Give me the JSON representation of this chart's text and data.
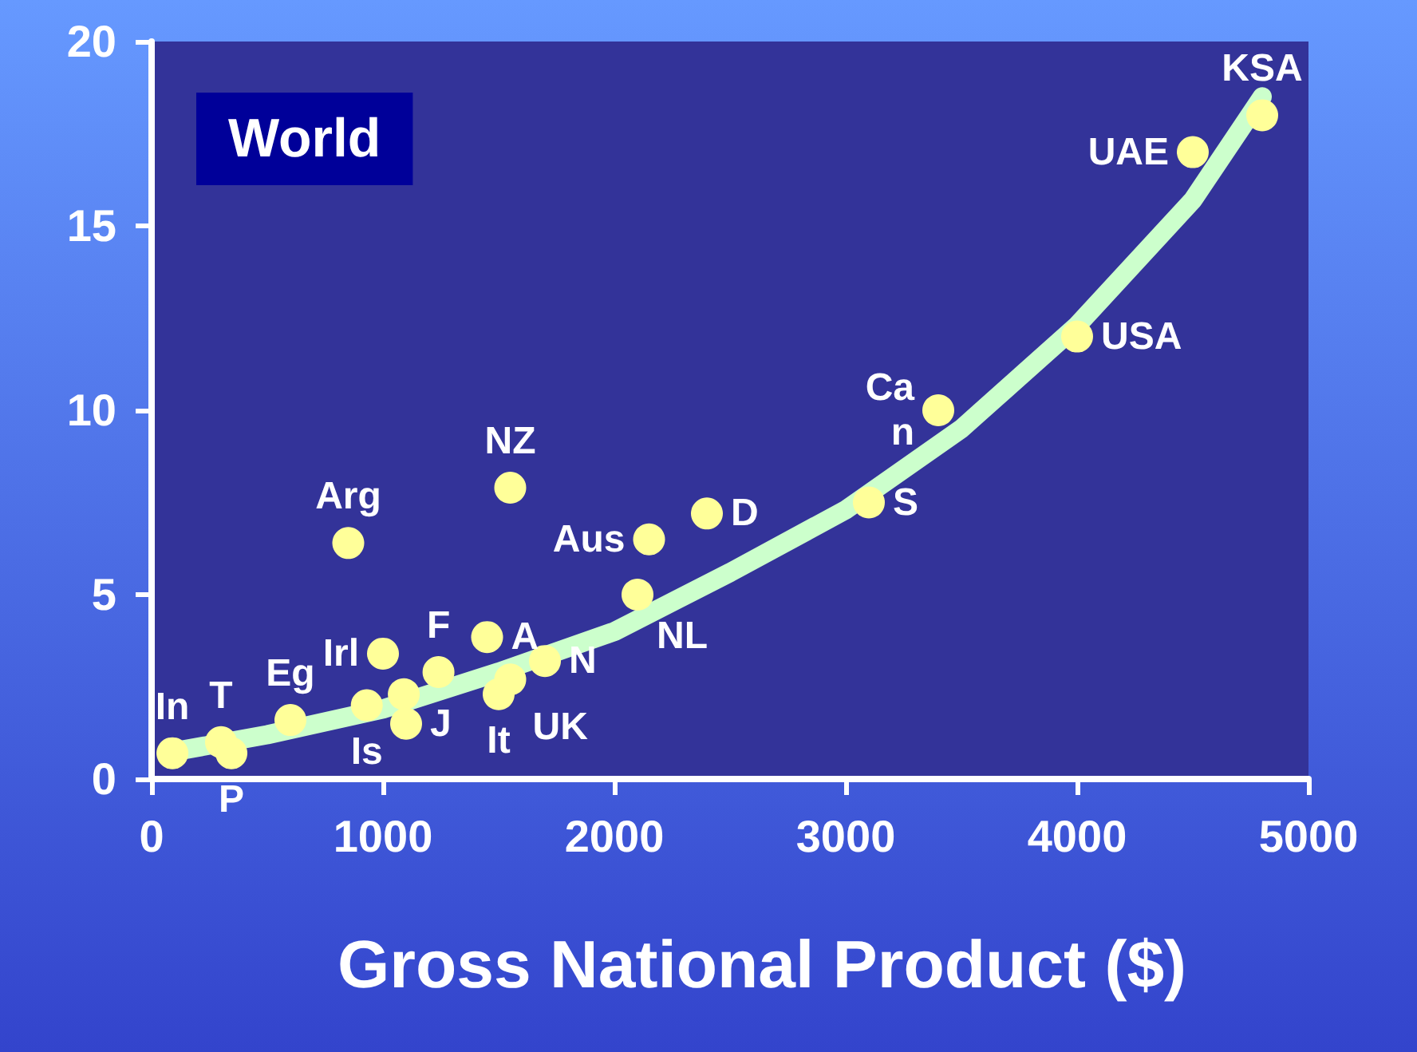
{
  "chart_data": {
    "type": "scatter",
    "title": "World",
    "xlabel": "Gross National Product ($)",
    "xlim": [
      0,
      5000
    ],
    "xticks": [
      0,
      1000,
      2000,
      3000,
      4000,
      5000
    ],
    "ylim": [
      0,
      20
    ],
    "yticks": [
      0,
      5,
      10,
      15,
      20
    ],
    "grid": false,
    "series": [
      {
        "color": "#ffff99",
        "marker": "circle",
        "x": [
          90,
          300,
          345,
          600,
          930,
          1000,
          1090,
          1100,
          1240,
          1450,
          1500,
          1550,
          1700,
          850,
          1550,
          2100,
          2150,
          2400,
          3100,
          3400,
          4000,
          4500,
          4800
        ],
        "values": [
          0.7,
          1.0,
          0.7,
          1.6,
          2.0,
          3.4,
          2.3,
          1.5,
          2.9,
          3.85,
          2.3,
          2.7,
          3.2,
          6.4,
          7.9,
          5.0,
          6.5,
          7.2,
          7.5,
          10.0,
          12.0,
          17.0,
          18.0
        ],
        "value_labels": [
          "In",
          "T",
          "P",
          "Eg",
          "Is",
          "Irl",
          null,
          "J",
          "F",
          "A",
          "It",
          "UK",
          "N",
          "Arg",
          "NZ",
          "NL",
          "Aus",
          "D",
          "S",
          "Ca\nn",
          "USA",
          "UAE",
          "KSA"
        ]
      },
      {
        "type": "line",
        "color": "#ccffcc",
        "marker": "none",
        "line_style": "solid",
        "x": [
          100,
          500,
          1000,
          1500,
          2000,
          2500,
          3000,
          3500,
          4000,
          4500,
          4800
        ],
        "values": [
          0.75,
          1.2,
          1.9,
          2.9,
          4.0,
          5.6,
          7.3,
          9.5,
          12.3,
          15.7,
          18.5
        ]
      }
    ]
  }
}
